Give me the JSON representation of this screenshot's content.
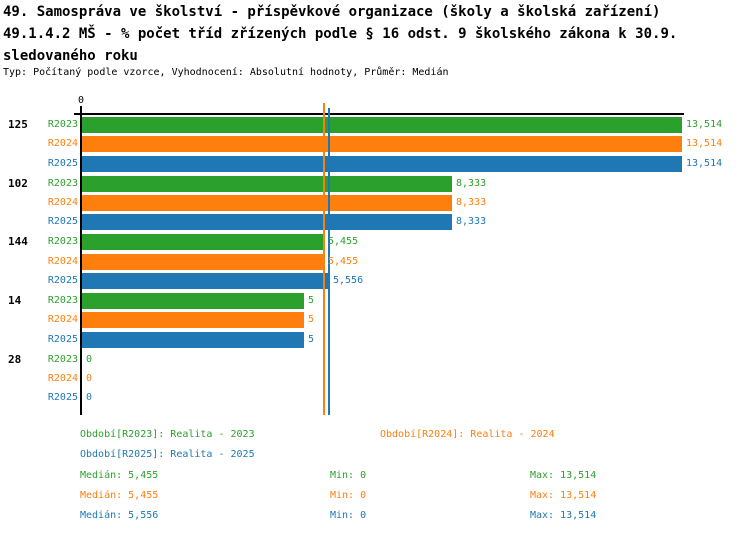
{
  "header": {
    "title_line1": "49. Samospráva ve školství - příspěvkové organizace (školy a školská zařízení)",
    "title_line2": "49.1.4.2 MŠ - % počet tříd zřízených podle § 16 odst. 9 školského zákona k 30.9.",
    "title_line3": "sledovaného roku",
    "meta_line": "Typ: Počítaný podle vzorce, Vyhodnocení: Absolutní hodnoty, Průměr: Medián"
  },
  "colors": {
    "green": "#2ca02c",
    "orange": "#ff7f0e",
    "blue": "#1f77b4",
    "axis": "#000000"
  },
  "chart_data": {
    "type": "bar",
    "orientation": "horizontal",
    "title": "49.1.4.2 MŠ - % počet tříd zřízených podle § 16 odst. 9 školského zákona k 30.9. sledovaného roku",
    "series_names": [
      "R2023",
      "R2024",
      "R2025"
    ],
    "series_colors": [
      "green",
      "orange",
      "blue"
    ],
    "axis": {
      "zero_label": "0",
      "min": 0,
      "max_value": 13.514,
      "grid": false
    },
    "groups": [
      {
        "label": "125",
        "values": [
          13.514,
          13.514,
          13.514
        ],
        "value_labels": [
          "13,514",
          "13,514",
          "13,514"
        ]
      },
      {
        "label": "102",
        "values": [
          8.333,
          8.333,
          8.333
        ],
        "value_labels": [
          "8,333",
          "8,333",
          "8,333"
        ]
      },
      {
        "label": "144",
        "values": [
          5.455,
          5.455,
          5.556
        ],
        "value_labels": [
          "5,455",
          "5,455",
          "5,556"
        ]
      },
      {
        "label": "14",
        "values": [
          5,
          5,
          5
        ],
        "value_labels": [
          "5",
          "5",
          "5"
        ]
      },
      {
        "label": "28",
        "values": [
          0,
          0,
          0
        ],
        "value_labels": [
          "0",
          "0",
          "0"
        ]
      }
    ],
    "median_lines": [
      {
        "series": "R2023",
        "value": 5.455,
        "color": "green"
      },
      {
        "series": "R2024",
        "value": 5.455,
        "color": "orange"
      },
      {
        "series": "R2025",
        "value": 5.556,
        "color": "blue"
      }
    ]
  },
  "legend": {
    "items": [
      {
        "label": "Období[R2023]: Realita - 2023",
        "color": "green"
      },
      {
        "label": "Období[R2024]: Realita - 2024",
        "color": "orange"
      },
      {
        "label": "Období[R2025]: Realita - 2025",
        "color": "blue"
      }
    ]
  },
  "stats": {
    "rows": [
      {
        "color": "green",
        "median": "Medián: 5,455",
        "min": "Min: 0",
        "max": "Max: 13,514"
      },
      {
        "color": "orange",
        "median": "Medián: 5,455",
        "min": "Min: 0",
        "max": "Max: 13,514"
      },
      {
        "color": "blue",
        "median": "Medián: 5,556",
        "min": "Min: 0",
        "max": "Max: 13,514"
      }
    ]
  }
}
